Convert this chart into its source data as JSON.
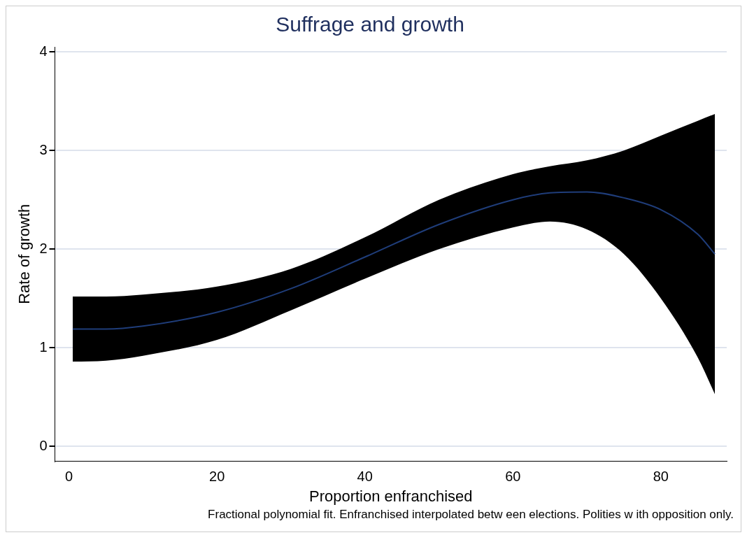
{
  "chart_data": {
    "type": "line",
    "title": "Suffrage and growth",
    "xlabel": "Proportion enfranchised",
    "ylabel": "Rate of growth",
    "annotations": [
      "Fractional polynomial fit. Enfranchised interpolated betw een elections. Polities w ith opposition only."
    ],
    "x": [
      0.5,
      5,
      10,
      20,
      30,
      40,
      50,
      60,
      65,
      70,
      75,
      80,
      85,
      87.3
    ],
    "series": [
      {
        "color": "#1f3d7a",
        "values": [
          1.19,
          1.19,
          1.22,
          1.36,
          1.6,
          1.92,
          2.25,
          2.5,
          2.57,
          2.58,
          2.52,
          2.4,
          2.15,
          1.95
        ],
        "lower": [
          0.86,
          0.87,
          0.92,
          1.08,
          1.38,
          1.7,
          2.0,
          2.22,
          2.28,
          2.2,
          1.95,
          1.5,
          0.9,
          0.53
        ],
        "upper": [
          1.52,
          1.52,
          1.54,
          1.62,
          1.8,
          2.12,
          2.5,
          2.76,
          2.84,
          2.9,
          3.0,
          3.15,
          3.3,
          3.37
        ]
      }
    ],
    "xlim": [
      -1.9,
      88.9
    ],
    "xticks": [
      0,
      20,
      40,
      60,
      80
    ],
    "ylim": [
      -0.15,
      4.05
    ],
    "yticks": [
      0,
      1,
      2,
      3,
      4
    ],
    "grid": "y",
    "legend": false,
    "marker": "none",
    "line_style": "solid"
  }
}
